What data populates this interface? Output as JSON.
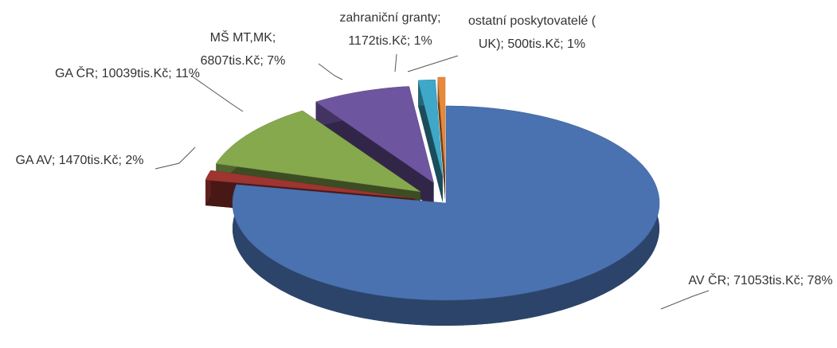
{
  "chart_data": {
    "type": "pie",
    "three_d": true,
    "exploded": true,
    "categories": [
      "AV ČR",
      "GA AV",
      "GA ČR",
      "MŠ MT,MK",
      "zahraniční granty",
      "ostatní poskytovatelé ( UK)"
    ],
    "values": [
      71053,
      1470,
      10039,
      6807,
      1172,
      500
    ],
    "value_labels": [
      "71053tis.Kč",
      "1470tis.Kč",
      "10039tis.Kč",
      "6807tis.Kč",
      "1172tis.Kč",
      "500tis.Kč"
    ],
    "percents": [
      78,
      2,
      11,
      7,
      1,
      1
    ],
    "percent_labels": [
      "78%",
      "2%",
      "11%",
      "7%",
      "1%",
      "1%"
    ],
    "separator": ";",
    "colors": [
      "#4a72b0",
      "#9e3530",
      "#86a94e",
      "#6e55a0",
      "#3fa8c8",
      "#e8893a"
    ]
  }
}
